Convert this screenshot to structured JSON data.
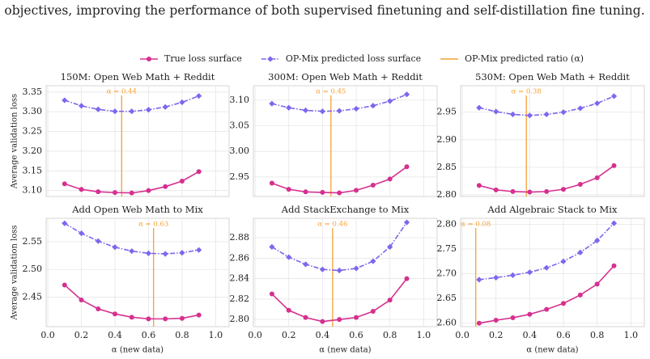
{
  "text": "objectives, improving the performance of both supervised finetuning and self-distillation fine tuning.",
  "chart_data": [
    {
      "type": "line",
      "title": "150M: Open Web Math + Reddit",
      "ylabel": "Average validation loss",
      "x": [
        0.1,
        0.2,
        0.3,
        0.4,
        0.5,
        0.6,
        0.7,
        0.8,
        0.9
      ],
      "xlim": [
        -0.01,
        1.08
      ],
      "xticks": [
        0,
        0.2,
        0.4,
        0.6,
        0.8,
        1
      ],
      "ylim": [
        3.085,
        3.366
      ],
      "yticks": [
        {
          "value": 3.1,
          "label": "3.10"
        },
        3.15,
        {
          "value": 3.2,
          "label": "3.20"
        },
        3.25,
        {
          "value": 3.3,
          "label": "3.30"
        },
        3.35
      ],
      "grid": true,
      "series": [
        {
          "name": "True loss surface",
          "color": "#d6308f",
          "marker": "circle",
          "linestyle": "solid",
          "values": [
            3.117,
            3.103,
            3.097,
            3.095,
            3.094,
            3.1,
            3.11,
            3.124,
            3.148
          ]
        },
        {
          "name": "OP-Mix predicted loss surface",
          "color": "#7b68ee",
          "marker": "diamond",
          "linestyle": "dashdot",
          "values": [
            3.329,
            3.315,
            3.306,
            3.301,
            3.301,
            3.305,
            3.312,
            3.324,
            3.34
          ]
        }
      ],
      "vline": {
        "name": "OP-Mix predicted ratio (α)",
        "color": "#f4a236",
        "value": 0.44,
        "label": "α = 0.44"
      }
    },
    {
      "type": "line",
      "title": "300M: Open Web Math + Reddit",
      "x": [
        0.1,
        0.2,
        0.3,
        0.4,
        0.5,
        0.6,
        0.7,
        0.8,
        0.9
      ],
      "xlim": [
        -0.01,
        1.08
      ],
      "xticks": [
        0,
        0.2,
        0.4,
        0.6,
        0.8,
        1
      ],
      "ylim": [
        2.912,
        3.128
      ],
      "yticks": [
        2.95,
        {
          "value": 3.0,
          "label": "3.00"
        },
        3.05,
        {
          "value": 3.1,
          "label": "3.10"
        }
      ],
      "grid": true,
      "series": [
        {
          "color": "#d6308f",
          "marker": "circle",
          "linestyle": "solid",
          "values": [
            2.938,
            2.926,
            2.921,
            2.92,
            2.919,
            2.924,
            2.934,
            2.946,
            2.97
          ]
        },
        {
          "color": "#7b68ee",
          "marker": "diamond",
          "linestyle": "dashdot",
          "values": [
            3.093,
            3.085,
            3.08,
            3.078,
            3.079,
            3.083,
            3.089,
            3.098,
            3.111
          ]
        }
      ],
      "vline": {
        "color": "#f4a236",
        "value": 0.45,
        "label": "α = 0.45"
      }
    },
    {
      "type": "line",
      "title": "530M: Open Web Math + Reddit",
      "x": [
        0.1,
        0.2,
        0.3,
        0.4,
        0.5,
        0.6,
        0.7,
        0.8,
        0.9
      ],
      "xlim": [
        -0.01,
        1.08
      ],
      "xticks": [
        0,
        0.2,
        0.4,
        0.6,
        0.8,
        1
      ],
      "ylim": [
        2.797,
        2.998
      ],
      "yticks": [
        {
          "value": 2.8,
          "label": "2.80"
        },
        2.85,
        {
          "value": 2.9,
          "label": "2.90"
        },
        2.95
      ],
      "grid": true,
      "series": [
        {
          "color": "#d6308f",
          "marker": "circle",
          "linestyle": "solid",
          "values": [
            2.817,
            2.809,
            2.806,
            2.805,
            2.806,
            2.81,
            2.819,
            2.831,
            2.853
          ]
        },
        {
          "color": "#7b68ee",
          "marker": "diamond",
          "linestyle": "dashdot",
          "values": [
            2.958,
            2.951,
            2.946,
            2.944,
            2.946,
            2.95,
            2.957,
            2.966,
            2.979
          ]
        }
      ],
      "vline": {
        "color": "#f4a236",
        "value": 0.38,
        "label": "α = 0.38"
      }
    },
    {
      "type": "line",
      "title": "Add Open Web Math to Mix",
      "ylabel": "Average validation loss",
      "xlabel": "α (new data)",
      "x": [
        0.1,
        0.2,
        0.3,
        0.4,
        0.5,
        0.6,
        0.7,
        0.8,
        0.9
      ],
      "xlim": [
        -0.01,
        1.08
      ],
      "xticks": [
        {
          "value": 0,
          "label": "0.0"
        },
        0.2,
        0.4,
        0.6,
        0.8,
        {
          "value": 1,
          "label": "1.0"
        }
      ],
      "ylim": [
        2.397,
        2.592
      ],
      "yticks": [
        2.45,
        {
          "value": 2.5,
          "label": "2.50"
        },
        2.55
      ],
      "grid": true,
      "series": [
        {
          "color": "#d6308f",
          "marker": "circle",
          "linestyle": "solid",
          "values": [
            2.472,
            2.445,
            2.429,
            2.42,
            2.414,
            2.411,
            2.411,
            2.412,
            2.418
          ]
        },
        {
          "color": "#7b68ee",
          "marker": "diamond",
          "linestyle": "dashdot",
          "values": [
            2.583,
            2.565,
            2.551,
            2.54,
            2.533,
            2.529,
            2.528,
            2.53,
            2.535
          ]
        }
      ],
      "vline": {
        "color": "#f4a236",
        "value": 0.63,
        "label": "α = 0.63"
      }
    },
    {
      "type": "line",
      "title": "Add StackExchange to Mix",
      "xlabel": "α (new data)",
      "x": [
        0.1,
        0.2,
        0.3,
        0.4,
        0.5,
        0.6,
        0.7,
        0.8,
        0.9
      ],
      "xlim": [
        -0.01,
        1.08
      ],
      "xticks": [
        {
          "value": 0,
          "label": "0.0"
        },
        0.2,
        0.4,
        0.6,
        0.8,
        {
          "value": 1,
          "label": "1.0"
        }
      ],
      "ylim": [
        2.793,
        2.899
      ],
      "yticks": [
        {
          "value": 2.8,
          "label": "2.80"
        },
        2.82,
        2.84,
        2.86,
        2.88
      ],
      "grid": true,
      "series": [
        {
          "color": "#d6308f",
          "marker": "circle",
          "linestyle": "solid",
          "values": [
            2.825,
            2.809,
            2.802,
            2.798,
            2.8,
            2.802,
            2.808,
            2.819,
            2.84
          ]
        },
        {
          "color": "#7b68ee",
          "marker": "diamond",
          "linestyle": "dashdot",
          "values": [
            2.871,
            2.861,
            2.854,
            2.849,
            2.848,
            2.85,
            2.857,
            2.871,
            2.895
          ]
        }
      ],
      "vline": {
        "color": "#f4a236",
        "value": 0.46,
        "label": "α = 0.46"
      }
    },
    {
      "type": "line",
      "title": "Add Algebraic Stack to Mix",
      "xlabel": "α (new data)",
      "x": [
        0.1,
        0.2,
        0.3,
        0.4,
        0.5,
        0.6,
        0.7,
        0.8,
        0.9
      ],
      "xlim": [
        -0.01,
        1.08
      ],
      "xticks": [
        {
          "value": 0,
          "label": "0.0"
        },
        0.2,
        0.4,
        0.6,
        0.8,
        {
          "value": 1,
          "label": "1.0"
        }
      ],
      "ylim": [
        2.593,
        2.812
      ],
      "yticks": [
        {
          "value": 2.6,
          "label": "2.60"
        },
        2.65,
        {
          "value": 2.7,
          "label": "2.70"
        },
        2.75,
        {
          "value": 2.8,
          "label": "2.80"
        }
      ],
      "grid": true,
      "series": [
        {
          "color": "#d6308f",
          "marker": "circle",
          "linestyle": "solid",
          "values": [
            2.6,
            2.606,
            2.611,
            2.618,
            2.628,
            2.64,
            2.657,
            2.679,
            2.716
          ]
        },
        {
          "color": "#7b68ee",
          "marker": "diamond",
          "linestyle": "dashdot",
          "values": [
            2.688,
            2.692,
            2.697,
            2.703,
            2.712,
            2.725,
            2.743,
            2.767,
            2.802
          ]
        }
      ],
      "vline": {
        "color": "#f4a236",
        "value": 0.08,
        "label": "α = 0.08"
      }
    }
  ]
}
